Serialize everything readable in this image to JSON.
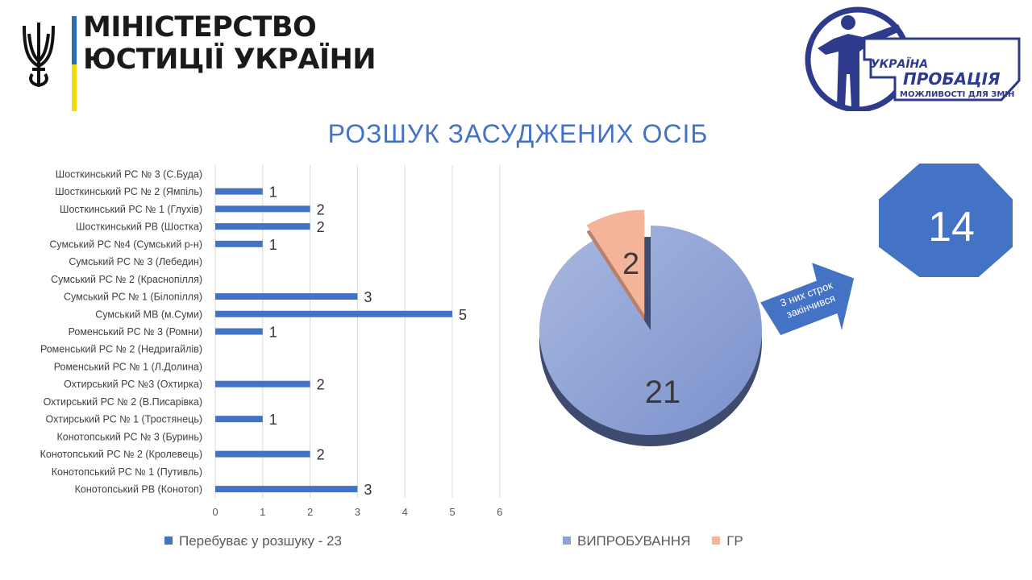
{
  "header": {
    "ministry_line1": "МІНІСТЕРСТВО",
    "ministry_line2": "ЮСТИЦІЇ УКРАЇНИ",
    "probation_line1": "УКРАЇНА",
    "probation_line2": "ПРОБАЦІЯ",
    "probation_line3": "МОЖЛИВОСТІ ДЛЯ ЗМІН"
  },
  "slide_title": "РОЗШУК ЗАСУДЖЕНИХ ОСІБ",
  "colors": {
    "bar": "#4472c4",
    "pie_main": "#8ea3d4",
    "pie_gr": "#f4b49a",
    "shape": "#4472c4",
    "title": "#4472c4"
  },
  "chart_data": [
    {
      "type": "bar",
      "orientation": "horizontal",
      "categories": [
        "Шосткинський РС № 3 (С.Буда)",
        "Шосткинський РС № 2 (Ямпіль)",
        "Шосткинський РС № 1 (Глухів)",
        "Шосткинський РВ (Шостка)",
        "Сумський РС №4 (Сумський р-н)",
        "Сумський РС № 3 (Лебедин)",
        "Сумський РС № 2 (Краснопілля)",
        "Сумський РС № 1 (Білопілля)",
        "Сумський МВ (м.Суми)",
        "Роменський РС № 3 (Ромни)",
        "Роменський РС № 2 (Недригайлів)",
        "Роменський РС № 1 (Л.Долина)",
        "Охтирський РС №3 (Охтирка)",
        "Охтирський РС № 2 (В.Писарівка)",
        "Охтирський РС № 1 (Тростянець)",
        "Конотопський РС № 3 (Буринь)",
        "Конотопський РС № 2 (Кролевець)",
        "Конотопський РС № 1 (Путивль)",
        "Конотопський РВ (Конотоп)"
      ],
      "series": [
        {
          "name": "Перебуває у розшуку - 23",
          "values": [
            0,
            1,
            2,
            2,
            1,
            0,
            0,
            3,
            5,
            1,
            0,
            0,
            2,
            0,
            1,
            0,
            2,
            0,
            3
          ]
        }
      ],
      "xlim": [
        0,
        6
      ],
      "xticks": [
        "0",
        "1",
        "2",
        "3",
        "4",
        "5",
        "6"
      ],
      "grid": true,
      "legend": "bottom"
    },
    {
      "type": "pie",
      "labels": [
        "ВИПРОБУВАННЯ",
        "ГР"
      ],
      "values": [
        21,
        2
      ],
      "exploded": [
        "ГР"
      ],
      "legend": "bottom"
    }
  ],
  "callout": {
    "arrow_text_line1": "3 них строк",
    "arrow_text_line2": "закінчився",
    "octagon_value": "14"
  }
}
